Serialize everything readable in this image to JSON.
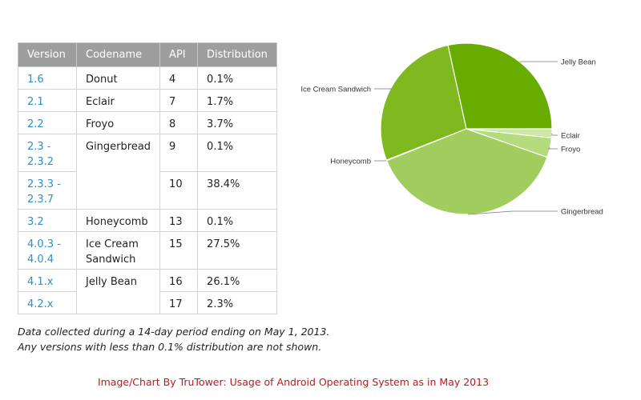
{
  "table": {
    "headers": [
      "Version",
      "Codename",
      "API",
      "Distribution"
    ],
    "rows": [
      {
        "version": [
          "1.6"
        ],
        "codename": [
          "Donut"
        ],
        "api": "4",
        "distribution": "0.1%"
      },
      {
        "version": [
          "2.1"
        ],
        "codename": [
          "Eclair"
        ],
        "api": "7",
        "distribution": "1.7%"
      },
      {
        "version": [
          "2.2"
        ],
        "codename": [
          "Froyo"
        ],
        "api": "8",
        "distribution": "3.7%"
      },
      {
        "version": [
          "2.3 -",
          "2.3.2"
        ],
        "codename": [
          "Gingerbread"
        ],
        "api": "9",
        "distribution": "0.1%"
      },
      {
        "version": [
          "2.3.3 -",
          "2.3.7"
        ],
        "codename": [],
        "api": "10",
        "distribution": "38.4%"
      },
      {
        "version": [
          "3.2"
        ],
        "codename": [
          "Honeycomb"
        ],
        "api": "13",
        "distribution": "0.1%"
      },
      {
        "version": [
          "4.0.3 -",
          "4.0.4"
        ],
        "codename": [
          "Ice Cream",
          "Sandwich"
        ],
        "api": "15",
        "distribution": "27.5%"
      },
      {
        "version": [
          "4.1.x"
        ],
        "codename": [
          "Jelly Bean"
        ],
        "api": "16",
        "distribution": "26.1%"
      },
      {
        "version": [
          "4.2.x"
        ],
        "codename": [],
        "api": "17",
        "distribution": "2.3%"
      }
    ]
  },
  "notes": {
    "line1": "Data collected during a 14-day period ending on May 1, 2013.",
    "line2": "Any versions with less than 0.1% distribution are not shown."
  },
  "credit": "Image/Chart By TruTower: Usage of Android Operating  System as in May 2013",
  "chart_data": {
    "type": "pie",
    "slices": [
      {
        "label": "Eclair",
        "value": 1.7,
        "color": "#cde8a6"
      },
      {
        "label": "Froyo",
        "value": 3.7,
        "color": "#b5dc7c"
      },
      {
        "label": "Gingerbread",
        "value": 38.5,
        "color": "#a1cd5e"
      },
      {
        "label": "Honeycomb",
        "value": 0.1,
        "color": "#91c23f"
      },
      {
        "label": "Ice Cream Sandwich",
        "value": 27.5,
        "color": "#7fb81f"
      },
      {
        "label": "Jelly Bean",
        "value": 28.4,
        "color": "#69ac00"
      }
    ]
  }
}
